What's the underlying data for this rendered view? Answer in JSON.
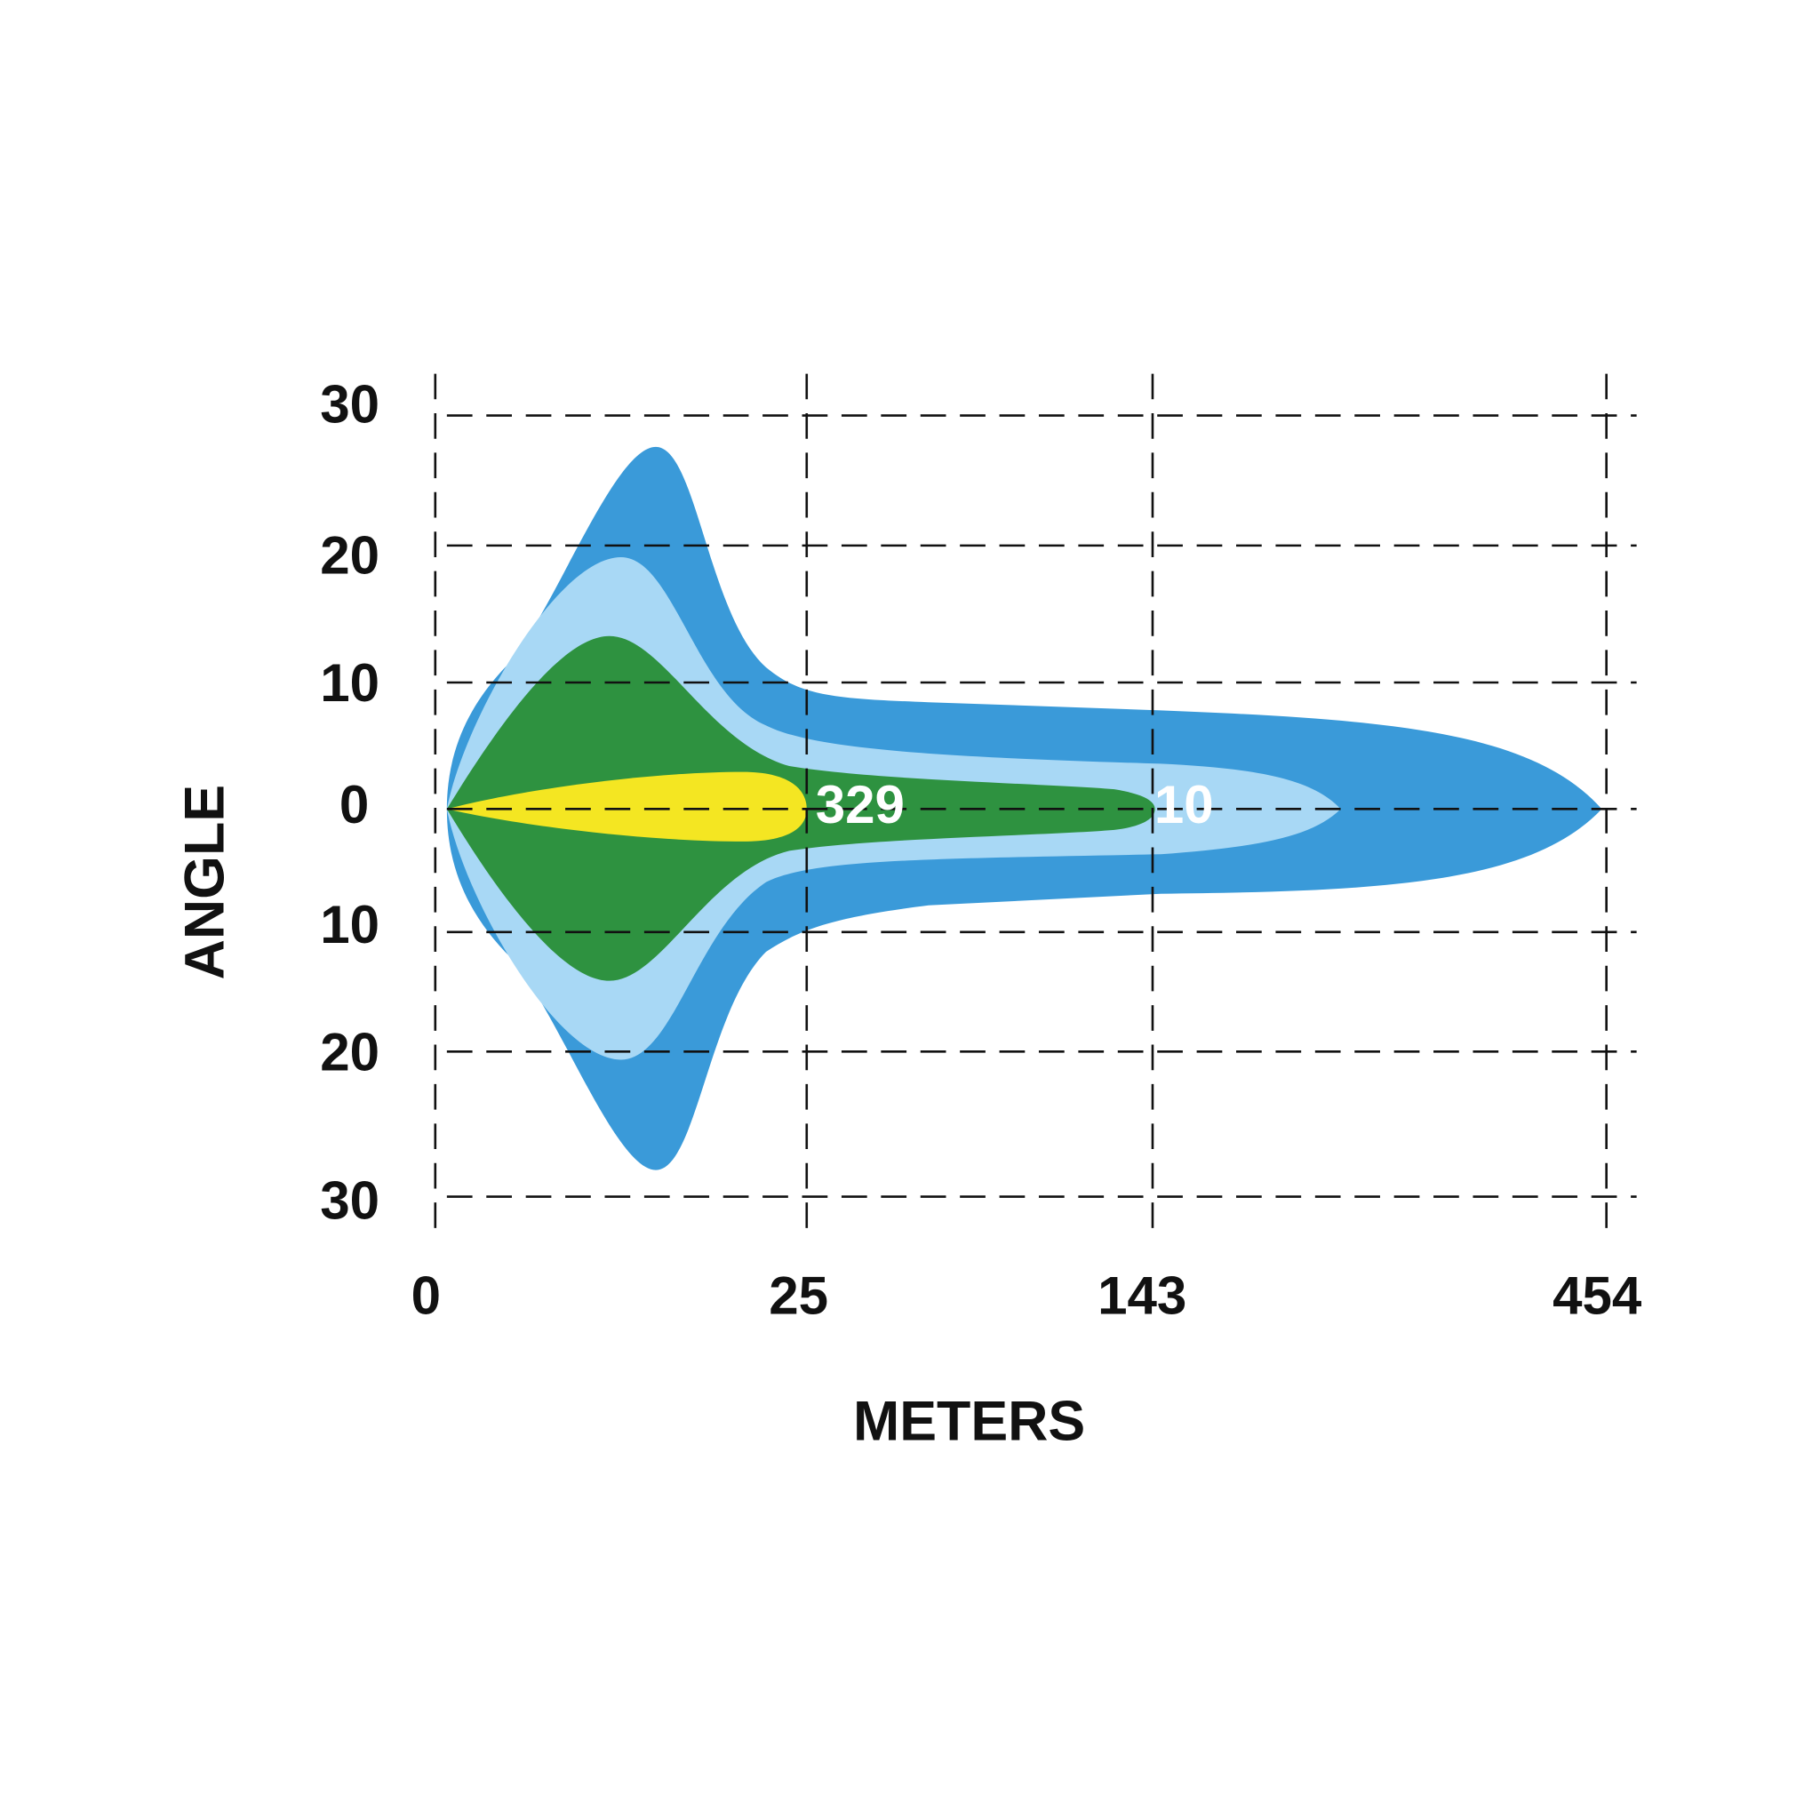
{
  "axes": {
    "y_title": "ANGLE",
    "x_title": "METERS",
    "y_ticks": [
      "30",
      "20",
      "10",
      "0",
      "10",
      "20",
      "30"
    ],
    "x_ticks": [
      "0",
      "25",
      "143",
      "454"
    ]
  },
  "zones": [
    {
      "label": "329"
    },
    {
      "label": "10"
    }
  ]
}
